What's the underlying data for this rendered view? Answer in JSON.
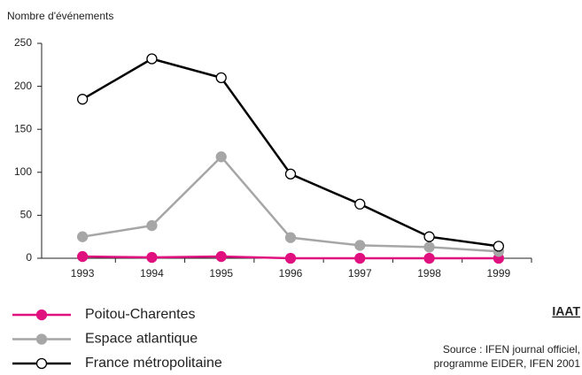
{
  "chart_data": {
    "type": "line",
    "y_label": "Nombre d'événements",
    "categories": [
      "1993",
      "1994",
      "1995",
      "1996",
      "1997",
      "1998",
      "1999"
    ],
    "series": [
      {
        "name": "Poitou-Charentes",
        "color": "#e0117f",
        "marker": "filled",
        "values": [
          2,
          1,
          2,
          0,
          0,
          0,
          0
        ]
      },
      {
        "name": "Espace atlantique",
        "color": "#a6a6a6",
        "marker": "filled",
        "values": [
          25,
          38,
          118,
          24,
          15,
          13,
          8
        ]
      },
      {
        "name": "France métropolitaine",
        "color": "#000000",
        "marker": "open",
        "values": [
          185,
          232,
          210,
          98,
          63,
          25,
          14
        ]
      }
    ],
    "ylim": [
      0,
      250
    ],
    "yticks": [
      0,
      50,
      100,
      150,
      200,
      250
    ],
    "logo": "IAAT",
    "source": [
      "Source : IFEN journal officiel,",
      "programme EIDER, IFEN 2001"
    ]
  }
}
